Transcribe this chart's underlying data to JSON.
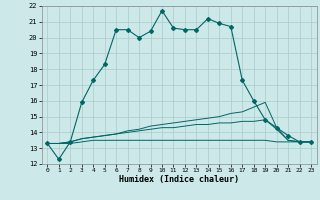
{
  "xlabel": "Humidex (Indice chaleur)",
  "background_color": "#cce8e8",
  "grid_color": "#aacccc",
  "line_color": "#006666",
  "xlim": [
    -0.5,
    23.5
  ],
  "ylim": [
    12,
    22
  ],
  "xticks": [
    0,
    1,
    2,
    3,
    4,
    5,
    6,
    7,
    8,
    9,
    10,
    11,
    12,
    13,
    14,
    15,
    16,
    17,
    18,
    19,
    20,
    21,
    22,
    23
  ],
  "yticks": [
    12,
    13,
    14,
    15,
    16,
    17,
    18,
    19,
    20,
    21,
    22
  ],
  "series": [
    {
      "x": [
        0,
        1,
        2,
        3,
        4,
        5,
        6,
        7,
        8,
        9,
        10,
        11,
        12,
        13,
        14,
        15,
        16,
        17,
        18,
        19,
        20,
        21,
        22,
        23
      ],
      "y": [
        13.3,
        12.3,
        13.4,
        15.9,
        17.3,
        18.3,
        20.5,
        20.5,
        20.0,
        20.4,
        21.7,
        20.6,
        20.5,
        20.5,
        21.2,
        20.9,
        20.7,
        17.3,
        16.0,
        14.8,
        14.3,
        13.8,
        13.4,
        13.4
      ],
      "marker": true
    },
    {
      "x": [
        0,
        1,
        2,
        3,
        4,
        5,
        6,
        7,
        8,
        9,
        10,
        11,
        12,
        13,
        14,
        15,
        16,
        17,
        18,
        19,
        20,
        21,
        22,
        23
      ],
      "y": [
        13.3,
        13.3,
        13.4,
        13.6,
        13.7,
        13.8,
        13.9,
        14.1,
        14.2,
        14.4,
        14.5,
        14.6,
        14.7,
        14.8,
        14.9,
        15.0,
        15.2,
        15.3,
        15.6,
        15.9,
        14.3,
        13.5,
        13.4,
        13.4
      ],
      "marker": false
    },
    {
      "x": [
        0,
        1,
        2,
        3,
        4,
        5,
        6,
        7,
        8,
        9,
        10,
        11,
        12,
        13,
        14,
        15,
        16,
        17,
        18,
        19,
        20,
        21,
        22,
        23
      ],
      "y": [
        13.3,
        13.3,
        13.4,
        13.6,
        13.7,
        13.8,
        13.9,
        14.0,
        14.1,
        14.2,
        14.3,
        14.3,
        14.4,
        14.5,
        14.5,
        14.6,
        14.6,
        14.7,
        14.7,
        14.8,
        14.2,
        13.5,
        13.4,
        13.4
      ],
      "marker": false
    },
    {
      "x": [
        0,
        1,
        2,
        3,
        4,
        5,
        6,
        7,
        8,
        9,
        10,
        11,
        12,
        13,
        14,
        15,
        16,
        17,
        18,
        19,
        20,
        21,
        22,
        23
      ],
      "y": [
        13.3,
        13.3,
        13.3,
        13.4,
        13.5,
        13.5,
        13.5,
        13.5,
        13.5,
        13.5,
        13.5,
        13.5,
        13.5,
        13.5,
        13.5,
        13.5,
        13.5,
        13.5,
        13.5,
        13.5,
        13.4,
        13.4,
        13.4,
        13.4
      ],
      "marker": false
    }
  ]
}
